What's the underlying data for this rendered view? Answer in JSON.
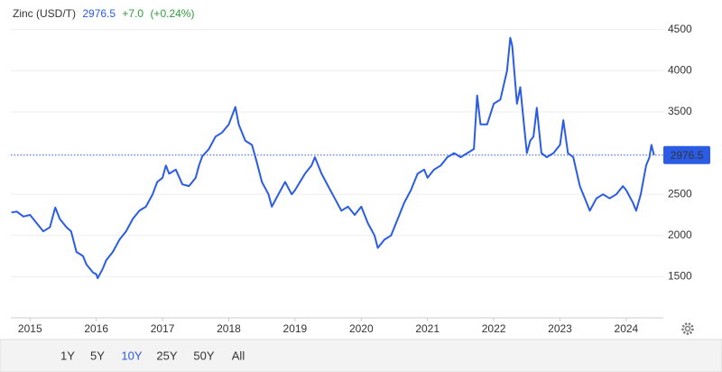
{
  "chart_data": {
    "type": "line",
    "title": "Zinc (USD/T)",
    "last_value": 2976.5,
    "change": "+7.0",
    "change_pct": "(+0.24%)",
    "color": "#2b5ce6",
    "grid": true,
    "xlim": [
      2014.71,
      2024.56
    ],
    "xticks": [
      2015,
      2016,
      2017,
      2018,
      2019,
      2020,
      2021,
      2022,
      2023,
      2024
    ],
    "ylim": [
      1000,
      4640
    ],
    "yticks": [
      1500,
      2000,
      2500,
      3500,
      4000,
      4500
    ],
    "x": [
      2014.72,
      2014.8,
      2014.9,
      2015.0,
      2015.1,
      2015.2,
      2015.3,
      2015.35,
      2015.38,
      2015.45,
      2015.55,
      2015.62,
      2015.7,
      2015.8,
      2015.85,
      2015.95,
      2016.0,
      2016.02,
      2016.1,
      2016.15,
      2016.25,
      2016.35,
      2016.45,
      2016.55,
      2016.65,
      2016.75,
      2016.85,
      2016.92,
      2017.0,
      2017.05,
      2017.1,
      2017.2,
      2017.3,
      2017.4,
      2017.5,
      2017.55,
      2017.6,
      2017.7,
      2017.8,
      2017.9,
      2018.0,
      2018.1,
      2018.15,
      2018.25,
      2018.35,
      2018.42,
      2018.5,
      2018.6,
      2018.65,
      2018.75,
      2018.85,
      2018.95,
      2019.0,
      2019.15,
      2019.25,
      2019.3,
      2019.4,
      2019.5,
      2019.6,
      2019.7,
      2019.8,
      2019.9,
      2020.0,
      2020.1,
      2020.2,
      2020.25,
      2020.35,
      2020.45,
      2020.55,
      2020.65,
      2020.75,
      2020.85,
      2020.95,
      2021.0,
      2021.1,
      2021.2,
      2021.3,
      2021.4,
      2021.5,
      2021.6,
      2021.7,
      2021.75,
      2021.8,
      2021.9,
      2022.0,
      2022.1,
      2022.2,
      2022.25,
      2022.28,
      2022.35,
      2022.4,
      2022.45,
      2022.5,
      2022.55,
      2022.6,
      2022.65,
      2022.72,
      2022.8,
      2022.9,
      2023.0,
      2023.05,
      2023.12,
      2023.2,
      2023.3,
      2023.4,
      2023.45,
      2023.55,
      2023.65,
      2023.75,
      2023.85,
      2023.95,
      2024.0,
      2024.1,
      2024.15,
      2024.22,
      2024.3,
      2024.35,
      2024.38,
      2024.42
    ],
    "values": [
      2280,
      2290,
      2230,
      2250,
      2150,
      2050,
      2100,
      2250,
      2340,
      2200,
      2100,
      2050,
      1800,
      1750,
      1650,
      1550,
      1530,
      1480,
      1600,
      1700,
      1800,
      1950,
      2050,
      2200,
      2300,
      2350,
      2500,
      2650,
      2700,
      2850,
      2750,
      2800,
      2620,
      2600,
      2700,
      2850,
      2960,
      3050,
      3200,
      3250,
      3350,
      3560,
      3350,
      3150,
      3100,
      2900,
      2650,
      2500,
      2350,
      2500,
      2650,
      2500,
      2550,
      2750,
      2850,
      2950,
      2750,
      2600,
      2450,
      2300,
      2350,
      2250,
      2350,
      2150,
      2000,
      1850,
      1950,
      2000,
      2200,
      2400,
      2550,
      2750,
      2800,
      2700,
      2800,
      2850,
      2950,
      3000,
      2950,
      3000,
      3050,
      3700,
      3350,
      3350,
      3600,
      3650,
      4000,
      4400,
      4300,
      3600,
      3800,
      3400,
      3000,
      3150,
      3200,
      3550,
      3000,
      2950,
      3000,
      3100,
      3400,
      3000,
      2950,
      2600,
      2400,
      2300,
      2450,
      2500,
      2450,
      2500,
      2600,
      2550,
      2400,
      2300,
      2500,
      2850,
      2950,
      3100,
      2976.5
    ],
    "ranges": [
      "1Y",
      "5Y",
      "10Y",
      "25Y",
      "50Y",
      "All"
    ],
    "selected_range": "10Y"
  }
}
